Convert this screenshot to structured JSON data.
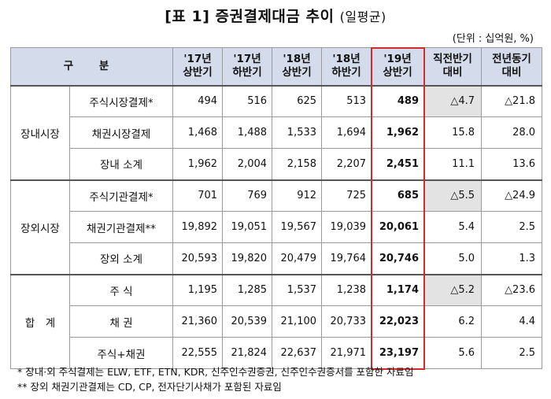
{
  "title": {
    "main": "[표 1] 증권결제대금 추이",
    "sub": "(일평균)"
  },
  "unit": "(단위 : 십억원, %)",
  "headers": {
    "category": "구 분",
    "periods": [
      [
        "'17년",
        "상반기"
      ],
      [
        "'17년",
        "하반기"
      ],
      [
        "'18년",
        "상반기"
      ],
      [
        "'18년",
        "하반기"
      ],
      [
        "'19년",
        "상반기"
      ]
    ],
    "prev_half": [
      "직전반기",
      "대비"
    ],
    "yoy": [
      "전년동기",
      "대비"
    ]
  },
  "groups": [
    {
      "name": "장내시장",
      "rows": [
        {
          "label": "주식시장결제*",
          "values": [
            "494",
            "516",
            "625",
            "513",
            "489"
          ],
          "prev": "△4.7",
          "yoy": "△21.8",
          "shade_prev": true
        },
        {
          "label": "채권시장결제",
          "values": [
            "1,468",
            "1,488",
            "1,533",
            "1,694",
            "1,962"
          ],
          "prev": "15.8",
          "yoy": "28.0",
          "shade_prev": false
        },
        {
          "label": "장내 소계",
          "values": [
            "1,962",
            "2,004",
            "2,158",
            "2,207",
            "2,451"
          ],
          "prev": "11.1",
          "yoy": "13.6",
          "shade_prev": false
        }
      ]
    },
    {
      "name": "장외시장",
      "rows": [
        {
          "label": "주식기관결제*",
          "values": [
            "701",
            "769",
            "912",
            "725",
            "685"
          ],
          "prev": "△5.5",
          "yoy": "△24.9",
          "shade_prev": true
        },
        {
          "label": "채권기관결제**",
          "values": [
            "19,892",
            "19,051",
            "19,567",
            "19,039",
            "20,061"
          ],
          "prev": "5.4",
          "yoy": "2.5",
          "shade_prev": false
        },
        {
          "label": "장외 소계",
          "values": [
            "20,593",
            "19,820",
            "20,479",
            "19,764",
            "20,746"
          ],
          "prev": "5.0",
          "yoy": "1.3",
          "shade_prev": false
        }
      ]
    },
    {
      "name": "합　계",
      "rows": [
        {
          "label": "주 식",
          "values": [
            "1,195",
            "1,285",
            "1,537",
            "1,238",
            "1,174"
          ],
          "prev": "△5.2",
          "yoy": "△23.6",
          "shade_prev": true
        },
        {
          "label": "채 권",
          "values": [
            "21,360",
            "20,539",
            "21,100",
            "20,733",
            "22,023"
          ],
          "prev": "6.2",
          "yoy": "4.4",
          "shade_prev": false
        },
        {
          "label": "주식+채권",
          "values": [
            "22,555",
            "21,824",
            "22,637",
            "21,971",
            "23,197"
          ],
          "prev": "5.6",
          "yoy": "2.5",
          "shade_prev": false
        }
      ]
    }
  ],
  "notes": [
    "* 장내·외 주식결제는 ELW, ETF, ETN, KDR, 신주인수권증권, 신주인수권증서를 포함한 자료임",
    "** 장외 채권기관결제는 CD, CP, 전자단기사채가 포함된 자료임"
  ],
  "colors": {
    "header_bg": "#d4dceb",
    "shade": "#e3e3e3",
    "highlight_border": "#d12b2b"
  }
}
